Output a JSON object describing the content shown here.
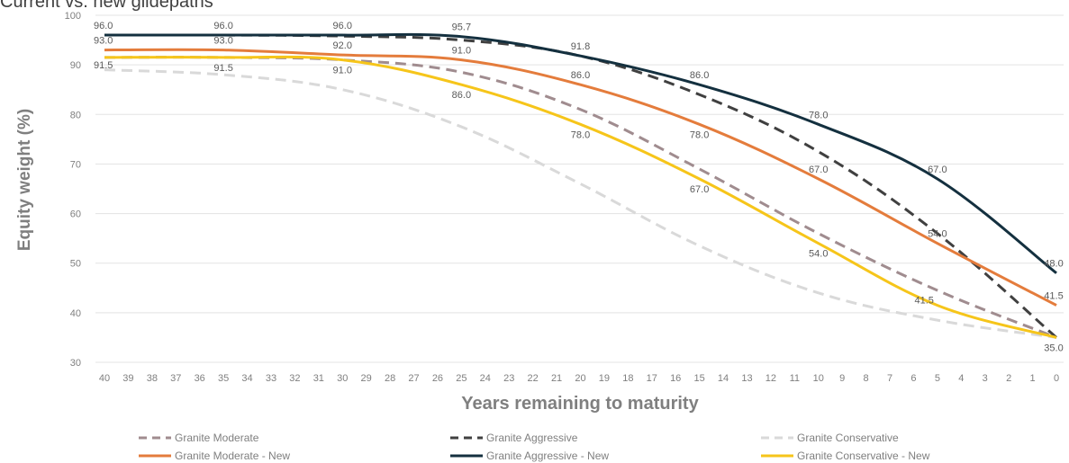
{
  "chart_data": {
    "type": "line",
    "title": "Current vs. new glidepaths",
    "xlabel": "Years remaining to maturity",
    "ylabel": "Equity weight (%)",
    "ylim": [
      30,
      100
    ],
    "xlim": [
      40,
      0
    ],
    "x_reversed": true,
    "grid": true,
    "legend_position": "bottom",
    "x": [
      40,
      39,
      38,
      37,
      36,
      35,
      34,
      33,
      32,
      31,
      30,
      29,
      28,
      27,
      26,
      25,
      24,
      23,
      22,
      21,
      20,
      19,
      18,
      17,
      16,
      15,
      14,
      13,
      12,
      11,
      10,
      9,
      8,
      7,
      6,
      5,
      4,
      3,
      2,
      1,
      0
    ],
    "y_ticks": [
      "100",
      "90",
      "80",
      "70",
      "60",
      "50",
      "40",
      "30"
    ],
    "series": [
      {
        "name": "Granite Moderate",
        "color": "#a08c8f",
        "dash": true,
        "points": [
          [
            40,
            91.5
          ],
          [
            35,
            91.5
          ],
          [
            30,
            91.0
          ],
          [
            25,
            88.5
          ],
          [
            20,
            81.0
          ],
          [
            15,
            69.0
          ],
          [
            10,
            56.0
          ],
          [
            5,
            44.5
          ],
          [
            0,
            35.0
          ]
        ]
      },
      {
        "name": "Granite Aggressive",
        "color": "#404040",
        "dash": true,
        "points": [
          [
            40,
            96.0
          ],
          [
            35,
            96.0
          ],
          [
            30,
            95.8
          ],
          [
            25,
            95.0
          ],
          [
            20,
            91.8
          ],
          [
            15,
            84.0
          ],
          [
            10,
            72.5
          ],
          [
            5,
            56.0
          ],
          [
            0,
            35.0
          ]
        ]
      },
      {
        "name": "Granite Conservative",
        "color": "#d9d9d9",
        "dash": true,
        "points": [
          [
            40,
            89.0
          ],
          [
            35,
            88.0
          ],
          [
            30,
            85.0
          ],
          [
            25,
            77.5
          ],
          [
            20,
            66.0
          ],
          [
            15,
            53.5
          ],
          [
            10,
            44.0
          ],
          [
            5,
            38.5
          ],
          [
            0,
            35.0
          ]
        ]
      },
      {
        "name": "Granite Moderate - New",
        "color": "#e47c3c",
        "dash": false,
        "points": [
          [
            40,
            93.0
          ],
          [
            35,
            93.0
          ],
          [
            30,
            92.0
          ],
          [
            25,
            91.0
          ],
          [
            20,
            86.0
          ],
          [
            15,
            78.0
          ],
          [
            10,
            67.0
          ],
          [
            5,
            54.0
          ],
          [
            0,
            41.5
          ]
        ]
      },
      {
        "name": "Granite Aggressive - New",
        "color": "#14303f",
        "dash": false,
        "points": [
          [
            40,
            96.0
          ],
          [
            35,
            96.0
          ],
          [
            30,
            96.0
          ],
          [
            25,
            95.7
          ],
          [
            20,
            91.8
          ],
          [
            15,
            86.0
          ],
          [
            10,
            78.0
          ],
          [
            5,
            67.0
          ],
          [
            0,
            48.0
          ]
        ]
      },
      {
        "name": "Granite Conservative - New",
        "color": "#f6c51a",
        "dash": false,
        "points": [
          [
            40,
            91.5
          ],
          [
            35,
            91.5
          ],
          [
            30,
            91.0
          ],
          [
            25,
            86.0
          ],
          [
            20,
            78.0
          ],
          [
            15,
            67.0
          ],
          [
            10,
            54.0
          ],
          [
            5,
            41.5
          ],
          [
            0,
            35.0
          ]
        ]
      }
    ],
    "data_labels": [
      {
        "text": "96.0",
        "x": 40,
        "y": 96.0,
        "pos": "above-right"
      },
      {
        "text": "96.0",
        "x": 35,
        "y": 96.0,
        "pos": "above"
      },
      {
        "text": "96.0",
        "x": 30,
        "y": 96.0,
        "pos": "above"
      },
      {
        "text": "95.7",
        "x": 25,
        "y": 95.7,
        "pos": "above"
      },
      {
        "text": "93.0",
        "x": 40,
        "y": 93.0,
        "pos": "above-right"
      },
      {
        "text": "93.0",
        "x": 35,
        "y": 93.0,
        "pos": "above"
      },
      {
        "text": "92.0",
        "x": 30,
        "y": 92.0,
        "pos": "above"
      },
      {
        "text": "91.8",
        "x": 20,
        "y": 91.8,
        "pos": "above"
      },
      {
        "text": "91.5",
        "x": 40,
        "y": 91.5,
        "pos": "below-right"
      },
      {
        "text": "91.5",
        "x": 35,
        "y": 91.5,
        "pos": "below"
      },
      {
        "text": "91.0",
        "x": 30,
        "y": 91.0,
        "pos": "below"
      },
      {
        "text": "91.0",
        "x": 25,
        "y": 91.0,
        "pos": "above"
      },
      {
        "text": "86.0",
        "x": 20,
        "y": 86.0,
        "pos": "above"
      },
      {
        "text": "86.0",
        "x": 25,
        "y": 86.0,
        "pos": "below"
      },
      {
        "text": "86.0",
        "x": 15,
        "y": 86.0,
        "pos": "above"
      },
      {
        "text": "78.0",
        "x": 20,
        "y": 78.0,
        "pos": "below"
      },
      {
        "text": "78.0",
        "x": 15,
        "y": 78.0,
        "pos": "below"
      },
      {
        "text": "78.0",
        "x": 10,
        "y": 78.0,
        "pos": "above"
      },
      {
        "text": "67.0",
        "x": 10,
        "y": 67.0,
        "pos": "above"
      },
      {
        "text": "67.0",
        "x": 15,
        "y": 67.0,
        "pos": "below"
      },
      {
        "text": "67.0",
        "x": 5,
        "y": 67.0,
        "pos": "above"
      },
      {
        "text": "54.0",
        "x": 5,
        "y": 54.0,
        "pos": "above"
      },
      {
        "text": "54.0",
        "x": 10,
        "y": 54.0,
        "pos": "below"
      },
      {
        "text": "41.5",
        "x": 5,
        "y": 41.5,
        "pos": "above-left"
      },
      {
        "text": "48.0",
        "x": 0,
        "y": 48.0,
        "pos": "above"
      },
      {
        "text": "41.5",
        "x": 0,
        "y": 41.5,
        "pos": "above"
      },
      {
        "text": "35.0",
        "x": 0,
        "y": 35.0,
        "pos": "below"
      }
    ]
  }
}
